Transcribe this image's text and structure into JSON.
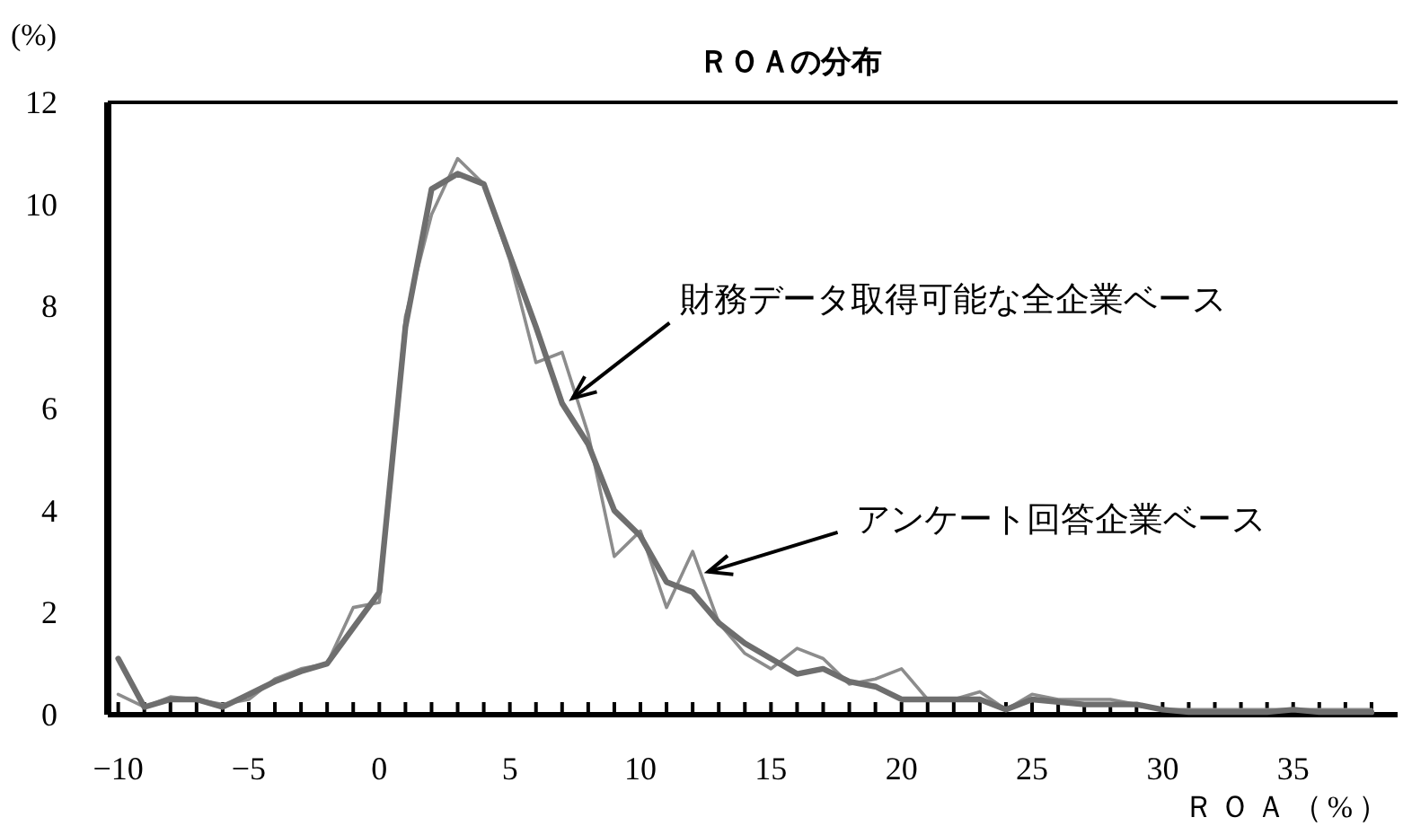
{
  "chart_data": {
    "type": "line",
    "title": "ＲＯＡの分布",
    "xlabel": "ＲＯＡ（%）",
    "ylabel": "(%)",
    "annotations": [
      {
        "text": "アンケート回答企業ベース",
        "x": 12.6,
        "y": 2.8
      },
      {
        "text": "財務データ取得可能な全企業ベース",
        "x": 7.4,
        "y": 6.2
      }
    ],
    "xlim": [
      -10.4,
      39
    ],
    "ylim": [
      0,
      12
    ],
    "xticks": [
      {
        "value": -10,
        "label": "−10"
      },
      {
        "value": -9,
        "label": null
      },
      {
        "value": -8,
        "label": null
      },
      {
        "value": -7,
        "label": null
      },
      {
        "value": -6,
        "label": null
      },
      {
        "value": -5,
        "label": "−5"
      },
      {
        "value": -4,
        "label": null
      },
      {
        "value": -3,
        "label": null
      },
      {
        "value": -2,
        "label": null
      },
      {
        "value": -1,
        "label": null
      },
      0,
      {
        "value": 1,
        "label": null
      },
      {
        "value": 2,
        "label": null
      },
      {
        "value": 3,
        "label": null
      },
      {
        "value": 4,
        "label": null
      },
      5,
      {
        "value": 6,
        "label": null
      },
      {
        "value": 7,
        "label": null
      },
      {
        "value": 8,
        "label": null
      },
      {
        "value": 9,
        "label": null
      },
      10,
      {
        "value": 11,
        "label": null
      },
      {
        "value": 12,
        "label": null
      },
      {
        "value": 13,
        "label": null
      },
      {
        "value": 14,
        "label": null
      },
      15,
      {
        "value": 16,
        "label": null
      },
      {
        "value": 17,
        "label": null
      },
      {
        "value": 18,
        "label": null
      },
      {
        "value": 19,
        "label": null
      },
      20,
      {
        "value": 21,
        "label": null
      },
      {
        "value": 22,
        "label": null
      },
      {
        "value": 23,
        "label": null
      },
      {
        "value": 24,
        "label": null
      },
      25,
      {
        "value": 26,
        "label": null
      },
      {
        "value": 27,
        "label": null
      },
      {
        "value": 28,
        "label": null
      },
      {
        "value": 29,
        "label": null
      },
      30,
      {
        "value": 31,
        "label": null
      },
      {
        "value": 32,
        "label": null
      },
      {
        "value": 33,
        "label": null
      },
      {
        "value": 34,
        "label": null
      },
      35,
      {
        "value": 36,
        "label": null
      },
      {
        "value": 37,
        "label": null
      },
      {
        "value": 38,
        "label": null
      }
    ],
    "yticks": [
      0,
      2,
      4,
      6,
      8,
      10,
      12
    ],
    "x": [
      -10,
      -9,
      -8,
      -7,
      -6,
      -5,
      -4,
      -3,
      -2,
      -1,
      0,
      1,
      2,
      3,
      4,
      5,
      6,
      7,
      8,
      9,
      10,
      11,
      12,
      13,
      14,
      15,
      16,
      17,
      18,
      19,
      20,
      21,
      22,
      23,
      24,
      25,
      26,
      27,
      28,
      29,
      30,
      31,
      32,
      33,
      34,
      35,
      36,
      37,
      38
    ],
    "series": [
      {
        "color": "#8c8c8c",
        "values": [
          0.4,
          0.15,
          0.35,
          0.3,
          0.2,
          0.3,
          0.7,
          0.9,
          1.0,
          2.1,
          2.2,
          7.8,
          9.8,
          10.9,
          10.4,
          8.9,
          6.9,
          7.1,
          5.5,
          3.1,
          3.6,
          2.1,
          3.2,
          1.8,
          1.2,
          0.9,
          1.3,
          1.1,
          0.6,
          0.7,
          0.9,
          0.3,
          0.3,
          0.45,
          0.1,
          0.4,
          0.3,
          0.3,
          0.3,
          0.2,
          0.1,
          0.1,
          0.1,
          0.1,
          0.1,
          0.1,
          0.1,
          0.1,
          0.1
        ]
      },
      {
        "color": "#6e6e6e",
        "values": [
          1.1,
          0.15,
          0.3,
          0.3,
          0.15,
          0.4,
          0.65,
          0.85,
          1.0,
          1.7,
          2.4,
          7.6,
          10.3,
          10.6,
          10.4,
          9.0,
          7.6,
          6.1,
          5.3,
          4.0,
          3.5,
          2.6,
          2.4,
          1.8,
          1.4,
          1.1,
          0.8,
          0.9,
          0.65,
          0.55,
          0.3,
          0.3,
          0.3,
          0.3,
          0.1,
          0.3,
          0.25,
          0.2,
          0.2,
          0.2,
          0.1,
          0.05,
          0.05,
          0.05,
          0.05,
          0.1,
          0.05,
          0.05,
          0.05
        ]
      }
    ]
  }
}
